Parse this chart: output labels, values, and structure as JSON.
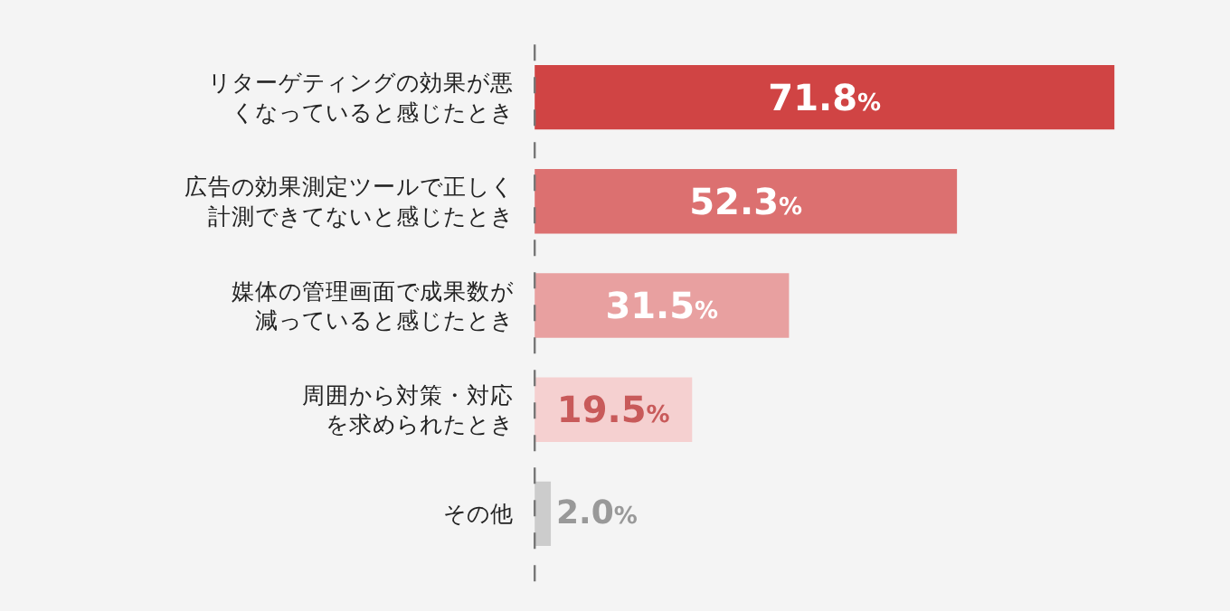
{
  "chart_data": {
    "type": "bar",
    "orientation": "horizontal",
    "categories": [
      "リターゲティングの効果が悪くなっていると感じたとき",
      "広告の効果測定ツールで正しく計測できてないと感じたとき",
      "媒体の管理画面で成果数が減っていると感じたとき",
      "周囲から対策・対応を求められたとき",
      "その他"
    ],
    "values": [
      71.8,
      52.3,
      31.5,
      19.5,
      2.0
    ],
    "colors": [
      "#d04444",
      "#dc7070",
      "#e8a0a0",
      "#f5d0d0",
      "#cccccc"
    ],
    "value_labels": [
      "71.8%",
      "52.3%",
      "31.5%",
      "19.5%",
      "2.0%"
    ],
    "ref_lines": [
      {
        "axis": "x",
        "value": 0,
        "color": "#777777",
        "line_style": "dashed"
      }
    ],
    "tick_labels": "y"
  }
}
